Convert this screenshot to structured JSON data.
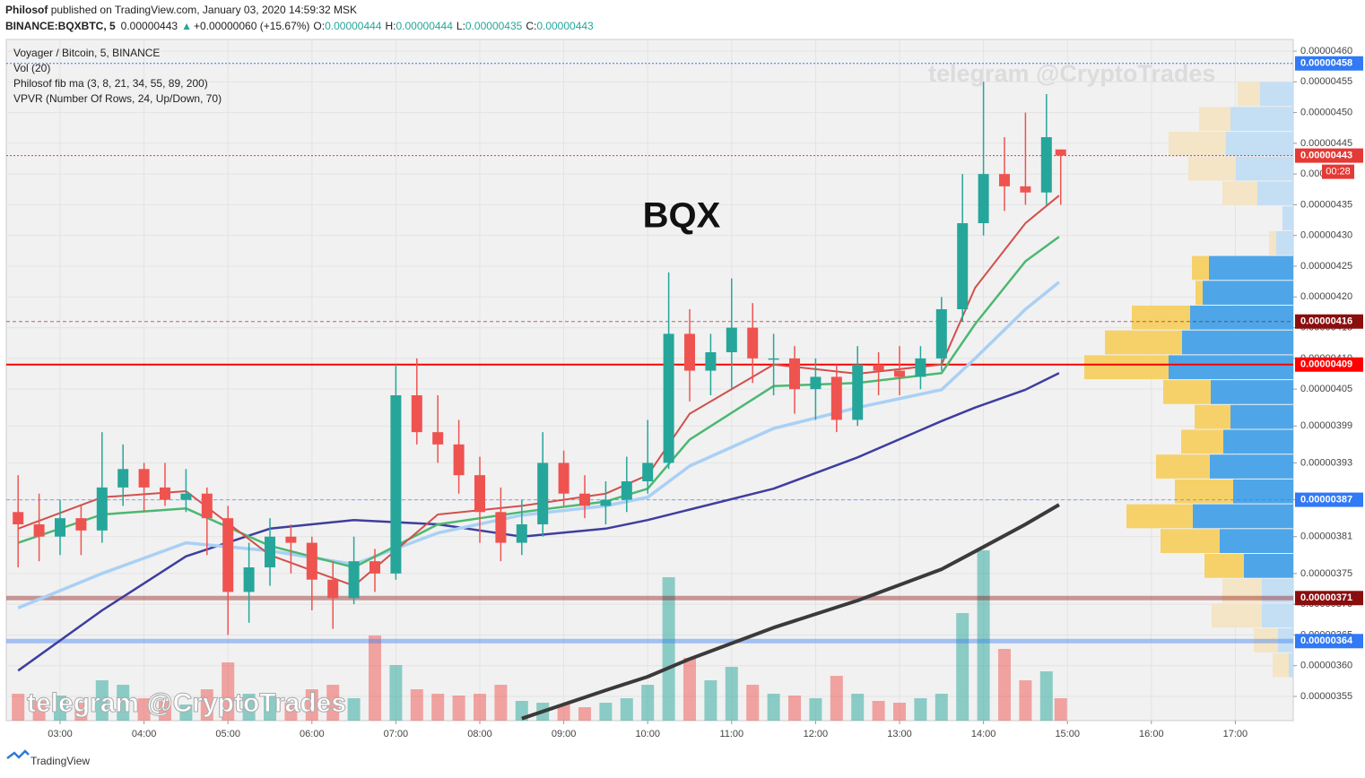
{
  "header": {
    "author": "Philosof",
    "published": "published on TradingView.com, January 03, 2020 14:59:32 MSK",
    "symbol": "BINANCE:BQXBTC, 5",
    "last": "0.00000443",
    "change": "+0.00000060 (+15.67%)",
    "quote": [
      {
        "key": "O:",
        "value": "0.00000444"
      },
      {
        "key": "H:",
        "value": "0.00000444"
      },
      {
        "key": "L:",
        "value": "0.00000435"
      },
      {
        "key": "C:",
        "value": "0.00000443"
      }
    ]
  },
  "chart_data": {
    "type": "candlestick",
    "title": "Voyager / Bitcoin, 5, BINANCE",
    "indicators": [
      "Vol (20)",
      "Philosof fib ma (3, 8, 21, 34, 55, 89, 200)",
      "VPVR (Number Of Rows, 24, Up/Down, 70)"
    ],
    "annotation": "BQX",
    "watermark": "telegram @CryptoTrades",
    "countdown": "00:28",
    "footer": "TradingView",
    "up_color": "#26a69a",
    "down_color": "#ef5350",
    "grid": true,
    "xlim": [
      2.359,
      17.69
    ],
    "ylim": [
      3.5106e-06,
      4.619e-06
    ],
    "xticks": [
      {
        "value": 3,
        "label": "03:00"
      },
      {
        "value": 4,
        "label": "04:00"
      },
      {
        "value": 5,
        "label": "05:00"
      },
      {
        "value": 6,
        "label": "06:00"
      },
      {
        "value": 7,
        "label": "07:00"
      },
      {
        "value": 8,
        "label": "08:00"
      },
      {
        "value": 9,
        "label": "09:00"
      },
      {
        "value": 10,
        "label": "10:00"
      },
      {
        "value": 11,
        "label": "11:00"
      },
      {
        "value": 12,
        "label": "12:00"
      },
      {
        "value": 13,
        "label": "13:00"
      },
      {
        "value": 14,
        "label": "14:00"
      },
      {
        "value": 15,
        "label": "15:00"
      },
      {
        "value": 16,
        "label": "16:00"
      },
      {
        "value": 17,
        "label": "17:00"
      }
    ],
    "yticks": [
      {
        "value": 4.6e-06,
        "label": "0.00000460"
      },
      {
        "value": 4.55e-06,
        "label": "0.00000455"
      },
      {
        "value": 4.5e-06,
        "label": "0.00000450"
      },
      {
        "value": 4.45e-06,
        "label": "0.00000445"
      },
      {
        "value": 4.4e-06,
        "label": "0.00000440"
      },
      {
        "value": 4.35e-06,
        "label": "0.00000435"
      },
      {
        "value": 4.3e-06,
        "label": "0.00000430"
      },
      {
        "value": 4.25e-06,
        "label": "0.00000425"
      },
      {
        "value": 4.2e-06,
        "label": "0.00000420"
      },
      {
        "value": 4.15e-06,
        "label": "0.00000415"
      },
      {
        "value": 4.1e-06,
        "label": "0.00000410"
      },
      {
        "value": 4.05e-06,
        "label": "0.00000405"
      },
      {
        "value": 3.99e-06,
        "label": "0.00000399"
      },
      {
        "value": 3.93e-06,
        "label": "0.00000393"
      },
      {
        "value": 3.87e-06,
        "label": "0.00000387"
      },
      {
        "value": 3.81e-06,
        "label": "0.00000381"
      },
      {
        "value": 3.75e-06,
        "label": "0.00000375"
      },
      {
        "value": 3.7e-06,
        "label": "0.00000370"
      },
      {
        "value": 3.65e-06,
        "label": "0.00000365"
      },
      {
        "value": 3.6e-06,
        "label": "0.00000360"
      },
      {
        "value": 3.55e-06,
        "label": "0.00000355"
      }
    ],
    "x": [
      2.5,
      2.75,
      3,
      3.25,
      3.5,
      3.75,
      4,
      4.25,
      4.5,
      4.75,
      5,
      5.25,
      5.5,
      5.75,
      6,
      6.25,
      6.5,
      6.75,
      7,
      7.25,
      7.5,
      7.75,
      8,
      8.25,
      8.5,
      8.75,
      9,
      9.25,
      9.5,
      9.75,
      10,
      10.25,
      10.5,
      10.75,
      11,
      11.25,
      11.5,
      11.75,
      12,
      12.25,
      12.5,
      12.75,
      13,
      13.25,
      13.5,
      13.75,
      14,
      14.25,
      14.5,
      14.75,
      14.92
    ],
    "open": [
      3.85e-06,
      3.83e-06,
      3.81e-06,
      3.84e-06,
      3.82e-06,
      3.89e-06,
      3.92e-06,
      3.89e-06,
      3.87e-06,
      3.88e-06,
      3.84e-06,
      3.72e-06,
      3.76e-06,
      3.81e-06,
      3.8e-06,
      3.74e-06,
      3.71e-06,
      3.77e-06,
      3.75e-06,
      4.04e-06,
      3.98e-06,
      3.96e-06,
      3.91e-06,
      3.85e-06,
      3.8e-06,
      3.83e-06,
      3.93e-06,
      3.88e-06,
      3.86e-06,
      3.87e-06,
      3.9e-06,
      3.93e-06,
      4.14e-06,
      4.08e-06,
      4.11e-06,
      4.15e-06,
      4.1e-06,
      4.1e-06,
      4.05e-06,
      4.07e-06,
      4e-06,
      4.09e-06,
      4.08e-06,
      4.07e-06,
      4.1e-06,
      4.18e-06,
      4.32e-06,
      4.4e-06,
      4.38e-06,
      4.37e-06,
      4.44e-06
    ],
    "high": [
      3.91e-06,
      3.88e-06,
      3.87e-06,
      3.86e-06,
      3.98e-06,
      3.96e-06,
      3.93e-06,
      3.93e-06,
      3.92e-06,
      3.89e-06,
      3.86e-06,
      3.8e-06,
      3.84e-06,
      3.83e-06,
      3.81e-06,
      3.77e-06,
      3.81e-06,
      3.79e-06,
      4.09e-06,
      4.1e-06,
      4.04e-06,
      4e-06,
      3.94e-06,
      3.89e-06,
      3.87e-06,
      3.98e-06,
      3.95e-06,
      3.91e-06,
      3.9e-06,
      3.94e-06,
      4e-06,
      4.24e-06,
      4.18e-06,
      4.14e-06,
      4.23e-06,
      4.19e-06,
      4.14e-06,
      4.12e-06,
      4.1e-06,
      4.09e-06,
      4.12e-06,
      4.11e-06,
      4.12e-06,
      4.12e-06,
      4.2e-06,
      4.4e-06,
      4.55e-06,
      4.46e-06,
      4.5e-06,
      4.53e-06,
      4.44e-06
    ],
    "low": [
      3.76e-06,
      3.77e-06,
      3.78e-06,
      3.78e-06,
      3.8e-06,
      3.86e-06,
      3.85e-06,
      3.86e-06,
      3.85e-06,
      3.78e-06,
      3.65e-06,
      3.67e-06,
      3.73e-06,
      3.75e-06,
      3.69e-06,
      3.66e-06,
      3.7e-06,
      3.72e-06,
      3.74e-06,
      3.96e-06,
      3.93e-06,
      3.88e-06,
      3.8e-06,
      3.77e-06,
      3.78e-06,
      3.81e-06,
      3.86e-06,
      3.84e-06,
      3.83e-06,
      3.85e-06,
      3.88e-06,
      3.92e-06,
      4.03e-06,
      4.04e-06,
      4.05e-06,
      4.06e-06,
      4.04e-06,
      4.01e-06,
      4e-06,
      3.98e-06,
      3.99e-06,
      4.04e-06,
      4.04e-06,
      4.05e-06,
      4.08e-06,
      4.16e-06,
      4.3e-06,
      4.34e-06,
      4.35e-06,
      4.35e-06,
      4.35e-06
    ],
    "close": [
      3.83e-06,
      3.81e-06,
      3.84e-06,
      3.82e-06,
      3.89e-06,
      3.92e-06,
      3.89e-06,
      3.87e-06,
      3.88e-06,
      3.84e-06,
      3.72e-06,
      3.76e-06,
      3.81e-06,
      3.8e-06,
      3.74e-06,
      3.71e-06,
      3.77e-06,
      3.75e-06,
      4.04e-06,
      3.98e-06,
      3.96e-06,
      3.91e-06,
      3.85e-06,
      3.8e-06,
      3.83e-06,
      3.93e-06,
      3.88e-06,
      3.86e-06,
      3.87e-06,
      3.9e-06,
      3.93e-06,
      4.14e-06,
      4.08e-06,
      4.11e-06,
      4.15e-06,
      4.1e-06,
      4.1e-06,
      4.05e-06,
      4.07e-06,
      4e-06,
      4.09e-06,
      4.08e-06,
      4.07e-06,
      4.1e-06,
      4.18e-06,
      4.32e-06,
      4.4e-06,
      4.38e-06,
      4.37e-06,
      4.46e-06,
      4.43e-06
    ],
    "volume": [
      30,
      22,
      28,
      20,
      45,
      40,
      25,
      22,
      18,
      35,
      65,
      30,
      28,
      20,
      35,
      40,
      25,
      95,
      62,
      35,
      30,
      28,
      30,
      40,
      22,
      20,
      18,
      15,
      20,
      25,
      40,
      160,
      70,
      45,
      60,
      40,
      30,
      28,
      25,
      50,
      30,
      22,
      20,
      25,
      30,
      120,
      190,
      80,
      45,
      55,
      25
    ],
    "ma_x": [
      2.5,
      3.5,
      4.5,
      5.5,
      6.5,
      7.5,
      8.5,
      9.5,
      10,
      10.5,
      11.5,
      12.5,
      13.5,
      13.9,
      14.5,
      14.9
    ],
    "ma_lines": [
      {
        "color": "#3e3e9e",
        "width": 2.5,
        "values": [
          3.592e-06,
          3.69e-06,
          3.778e-06,
          3.823e-06,
          3.837e-06,
          3.83e-06,
          3.81e-06,
          3.823e-06,
          3.837e-06,
          3.854e-06,
          3.888e-06,
          3.939e-06,
          3.998e-06,
          4.02e-06,
          4.049e-06,
          4.076e-06
        ]
      },
      {
        "color": "#a9d0f5",
        "width": 3.5,
        "values": [
          3.694e-06,
          3.75e-06,
          3.8e-06,
          3.787e-06,
          3.765e-06,
          3.816e-06,
          3.845e-06,
          3.86e-06,
          3.874e-06,
          3.925e-06,
          3.986e-06,
          4.02e-06,
          4.049e-06,
          4.1e-06,
          4.18e-06,
          4.224e-06
        ]
      },
      {
        "color": "#4cb870",
        "width": 2.5,
        "values": [
          3.8e-06,
          3.846e-06,
          3.856e-06,
          3.795e-06,
          3.76e-06,
          3.83e-06,
          3.85e-06,
          3.867e-06,
          3.888e-06,
          3.968e-06,
          4.055e-06,
          4.06e-06,
          4.076e-06,
          4.156e-06,
          4.258e-06,
          4.298e-06
        ]
      },
      {
        "color": "#d0504d",
        "width": 2,
        "values": [
          3.823e-06,
          3.874e-06,
          3.884e-06,
          3.78e-06,
          3.73e-06,
          3.846e-06,
          3.86e-06,
          3.88e-06,
          3.91e-06,
          4.01e-06,
          4.09e-06,
          4.075e-06,
          4.09e-06,
          4.215e-06,
          4.32e-06,
          4.365e-06
        ]
      },
      {
        "color": "#3a3a3a",
        "width": 4,
        "values": [
          null,
          null,
          null,
          null,
          null,
          null,
          3.514e-06,
          3.56e-06,
          3.582e-06,
          3.611e-06,
          3.662e-06,
          3.706e-06,
          3.757e-06,
          3.786e-06,
          3.83e-06,
          3.862e-06
        ]
      }
    ],
    "vpvr": {
      "value_area": 70,
      "up_color": "#f6d16a",
      "down_color": "#4ea6e8",
      "faded_up_color": "#f3e5c6",
      "faded_down_color": "#c4def4",
      "bins": [
        3.5806e-06,
        3.621e-06,
        3.6614e-06,
        3.7018e-06,
        3.7422e-06,
        3.7826e-06,
        3.823e-06,
        3.8634e-06,
        3.9038e-06,
        3.9442e-06,
        3.9846e-06,
        4.025e-06,
        4.0654e-06,
        4.1058e-06,
        4.1462e-06,
        4.1866e-06,
        4.227e-06,
        4.2674e-06,
        4.3078e-06,
        4.3482e-06,
        4.3886e-06,
        4.429e-06,
        4.4694e-06,
        4.5098e-06,
        4.5502e-06
      ],
      "up": [
        18,
        27,
        56,
        44,
        44,
        66,
        74,
        65,
        60,
        47,
        40,
        53,
        94,
        86,
        65,
        8,
        19,
        8,
        0,
        39,
        53,
        64,
        35,
        25
      ],
      "down": [
        5,
        17,
        35,
        35,
        55,
        82,
        112,
        67,
        93,
        78,
        70,
        92,
        139,
        124,
        115,
        101,
        94,
        19,
        12,
        40,
        64,
        75,
        70,
        37
      ]
    },
    "levels": [
      {
        "value": 4.58e-06,
        "label": "0.00000458",
        "color": "#3179f5",
        "style": "dotted"
      },
      {
        "value": 4.43e-06,
        "label": "0.00000443",
        "color": "#e53935",
        "style": "dotted"
      },
      {
        "value": 4.16e-06,
        "label": "0.00000416",
        "color": "#8b0e0e",
        "style": "dashed"
      },
      {
        "value": 4.09e-06,
        "label": "0.00000409",
        "color": "#ff0000",
        "style": "solid"
      },
      {
        "value": 3.87e-06,
        "label": "0.00000387",
        "color": "#3179f5",
        "style": "dashed"
      },
      {
        "value": 3.71e-06,
        "label": "0.00000371",
        "color": "#8b0e0e",
        "style": "thick"
      },
      {
        "value": 3.64e-06,
        "label": "0.00000364",
        "color": "#3179f5",
        "style": "thick"
      }
    ]
  }
}
